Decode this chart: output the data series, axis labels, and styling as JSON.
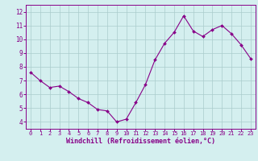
{
  "x": [
    0,
    1,
    2,
    3,
    4,
    5,
    6,
    7,
    8,
    9,
    10,
    11,
    12,
    13,
    14,
    15,
    16,
    17,
    18,
    19,
    20,
    21,
    22,
    23
  ],
  "y": [
    7.6,
    7.0,
    6.5,
    6.6,
    6.2,
    5.7,
    5.4,
    4.9,
    4.8,
    4.0,
    4.2,
    5.4,
    6.7,
    8.5,
    9.7,
    10.5,
    11.7,
    10.6,
    10.2,
    10.7,
    11.0,
    10.4,
    9.6,
    8.6
  ],
  "line_color": "#880088",
  "marker": "D",
  "marker_size": 2.0,
  "bg_color": "#d4efef",
  "grid_color": "#aacccc",
  "xlabel": "Windchill (Refroidissement éolien,°C)",
  "xlim": [
    -0.5,
    23.5
  ],
  "ylim": [
    3.5,
    12.5
  ],
  "yticks": [
    4,
    5,
    6,
    7,
    8,
    9,
    10,
    11,
    12
  ],
  "xticks": [
    0,
    1,
    2,
    3,
    4,
    5,
    6,
    7,
    8,
    9,
    10,
    11,
    12,
    13,
    14,
    15,
    16,
    17,
    18,
    19,
    20,
    21,
    22,
    23
  ],
  "tick_color": "#880088",
  "xlabel_color": "#880088",
  "xlabel_fontsize": 6.0,
  "ytick_fontsize": 5.5,
  "xtick_fontsize": 5.0,
  "line_width": 0.8,
  "spine_color": "#880088"
}
